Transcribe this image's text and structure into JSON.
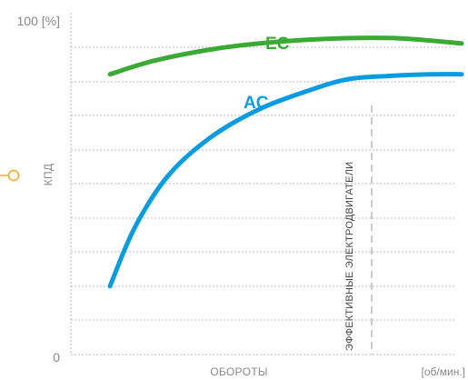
{
  "colors": {
    "ec": "#3aaa35",
    "ac": "#0a9be0",
    "marker": "#f5a623",
    "grid": "#b9b9b9"
  },
  "chart_data": {
    "type": "line",
    "title": "",
    "xlabel": "ОБОРОТЫ",
    "ylabel": "КПД",
    "x_unit": "[об/мин.]",
    "y_ticks": [
      "100 [%]",
      "0"
    ],
    "ylim": [
      0,
      100
    ],
    "xlim": [
      0,
      100
    ],
    "grid": true,
    "series": [
      {
        "name": "EC",
        "color": "#3aaa35",
        "x": [
          14,
          25,
          40,
          55,
          70,
          85,
          100
        ],
        "y": [
          82,
          86,
          89.5,
          91.5,
          92.5,
          92.5,
          91
        ]
      },
      {
        "name": "AC",
        "color": "#0a9be0",
        "x": [
          14,
          20,
          28,
          38,
          50,
          62,
          72,
          82,
          92,
          100
        ],
        "y": [
          20,
          37,
          52,
          63,
          71.5,
          77,
          80.5,
          81.5,
          82,
          82
        ]
      }
    ],
    "annotations": [
      {
        "text": "ЭФФЕКТИВНЫЕ ЭЛЕКТРОДВИГАТЕЛИ",
        "x": 78
      }
    ]
  }
}
